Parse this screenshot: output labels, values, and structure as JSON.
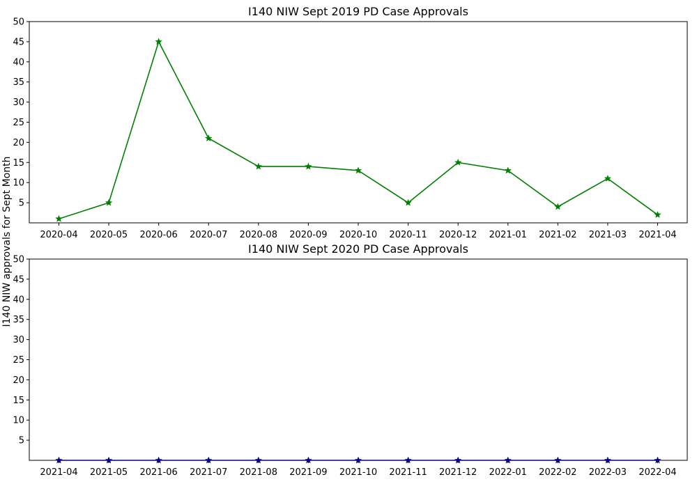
{
  "figure": {
    "ylabel": "I140 NIW approvals for Sept Month"
  },
  "chart_data": [
    {
      "type": "line",
      "title": "I140 NIW Sept 2019 PD Case Approvals",
      "xlabel": "",
      "ylabel": "I140 NIW approvals for Sept Month",
      "x": [
        "2020-04",
        "2020-05",
        "2020-06",
        "2020-07",
        "2020-08",
        "2020-09",
        "2020-10",
        "2020-11",
        "2020-12",
        "2021-01",
        "2021-02",
        "2021-03",
        "2021-04"
      ],
      "y_ticks": [
        5,
        10,
        15,
        20,
        25,
        30,
        35,
        40,
        45,
        50
      ],
      "ylim": [
        0,
        50
      ],
      "grid": false,
      "series": [
        {
          "values": [
            1,
            5,
            45,
            21,
            14,
            14,
            13,
            5,
            15,
            13,
            4,
            11,
            2
          ],
          "color": "#008000",
          "marker": "star"
        }
      ]
    },
    {
      "type": "line",
      "title": "I140 NIW Sept 2020 PD Case Approvals",
      "xlabel": "",
      "ylabel": "I140 NIW approvals for Sept Month",
      "x": [
        "2021-04",
        "2021-05",
        "2021-06",
        "2021-07",
        "2021-08",
        "2021-09",
        "2021-10",
        "2021-11",
        "2021-12",
        "2022-01",
        "2022-02",
        "2022-03",
        "2022-04"
      ],
      "y_ticks": [
        5,
        10,
        15,
        20,
        25,
        30,
        35,
        40,
        45,
        50
      ],
      "ylim": [
        0,
        50
      ],
      "grid": false,
      "series": [
        {
          "values": [
            0,
            0,
            0,
            0,
            0,
            0,
            0,
            0,
            0,
            0,
            0,
            0,
            0
          ],
          "color": "#00008b",
          "marker": "star"
        }
      ]
    }
  ]
}
